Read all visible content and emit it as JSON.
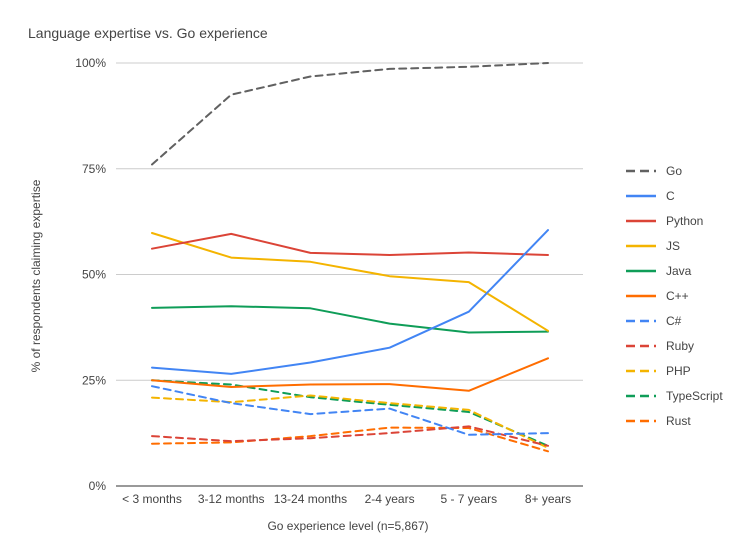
{
  "chart_data": {
    "type": "line",
    "title": "Language expertise vs. Go experience",
    "xlabel": "Go experience level (n=5,867)",
    "ylabel": "% of respondents claiming expertise",
    "categories": [
      "< 3 months",
      "3-12 months",
      "13-24 months",
      "2-4 years",
      "5 - 7 years",
      "8+ years"
    ],
    "yticks": [
      {
        "value": 0,
        "label": "0%"
      },
      {
        "value": 25,
        "label": "25%"
      },
      {
        "value": 50,
        "label": "50%"
      },
      {
        "value": 75,
        "label": "75%"
      },
      {
        "value": 100,
        "label": "100%"
      }
    ],
    "ylim": [
      0,
      100
    ],
    "grid": true,
    "legend_position": "right",
    "series": [
      {
        "name": "Go",
        "color": "#616161",
        "dashed": true,
        "values": [
          76,
          92.5,
          96.8,
          98.6,
          99.1,
          100
        ]
      },
      {
        "name": "C",
        "color": "#4285f4",
        "dashed": false,
        "values": [
          28,
          26.5,
          29.2,
          32.7,
          41.2,
          60.5
        ]
      },
      {
        "name": "Python",
        "color": "#db4437",
        "dashed": false,
        "values": [
          56.1,
          59.6,
          55.1,
          54.6,
          55.2,
          54.6
        ]
      },
      {
        "name": "JS",
        "color": "#f4b400",
        "dashed": false,
        "values": [
          59.8,
          54,
          53,
          49.6,
          48.2,
          36.7
        ]
      },
      {
        "name": "Java",
        "color": "#0f9d58",
        "dashed": false,
        "values": [
          42.1,
          42.5,
          42,
          38.4,
          36.3,
          36.5
        ]
      },
      {
        "name": "C++",
        "color": "#ff6d00",
        "dashed": false,
        "values": [
          25,
          23.4,
          24,
          24.1,
          22.5,
          30.2
        ]
      },
      {
        "name": "C#",
        "color": "#4285f4",
        "dashed": true,
        "values": [
          23.6,
          19.6,
          17,
          18.3,
          12.1,
          12.5
        ]
      },
      {
        "name": "Ruby",
        "color": "#db4437",
        "dashed": true,
        "values": [
          11.8,
          10.6,
          11.3,
          12.5,
          14.1,
          9.5
        ]
      },
      {
        "name": "PHP",
        "color": "#f4b400",
        "dashed": true,
        "values": [
          20.9,
          19.8,
          21.4,
          19.6,
          18,
          9
        ]
      },
      {
        "name": "TypeScript",
        "color": "#0f9d58",
        "dashed": true,
        "values": [
          25,
          24,
          21,
          19.2,
          17.5,
          9.5
        ]
      },
      {
        "name": "Rust",
        "color": "#ff6d00",
        "dashed": true,
        "values": [
          10,
          10.3,
          11.8,
          13.8,
          13.7,
          8.2
        ]
      }
    ]
  }
}
